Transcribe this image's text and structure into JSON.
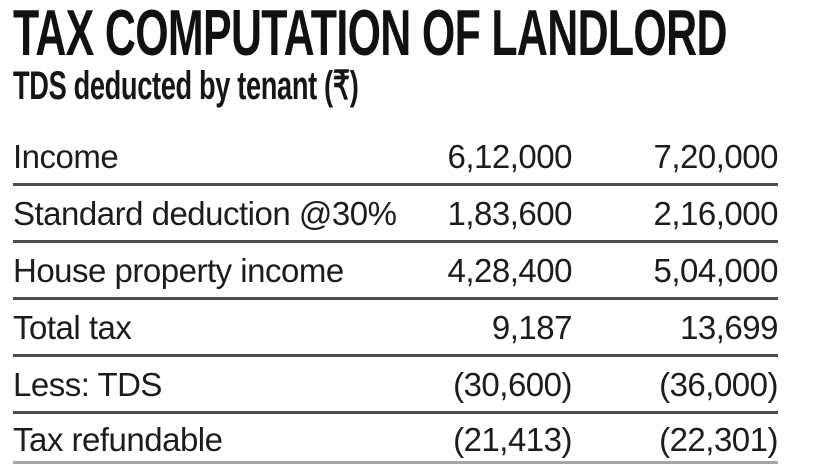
{
  "chart_data": {
    "type": "table",
    "title": "TAX COMPUTATION OF LANDLORD",
    "subtitle": "TDS deducted by tenant (₹)",
    "currency": "₹",
    "rows": [
      {
        "label": "Income",
        "values": [
          "6,12,000",
          "7,20,000"
        ]
      },
      {
        "label": "Standard deduction @30%",
        "values": [
          "1,83,600",
          "2,16,000"
        ]
      },
      {
        "label": "House property income",
        "values": [
          "4,28,400",
          "5,04,000"
        ]
      },
      {
        "label": "Total tax",
        "values": [
          "9,187",
          "13,699"
        ]
      },
      {
        "label": "Less: TDS",
        "values": [
          "(30,600)",
          "(36,000)"
        ]
      },
      {
        "label": "Tax refundable",
        "values": [
          "(21,413)",
          "(22,301)"
        ]
      }
    ],
    "layout": {
      "value_columns": 2,
      "value_alignment": "right",
      "rules_between_rows": true,
      "grid": "horizontal-rules-only"
    }
  },
  "colors": {
    "background": "#ffffff",
    "text": "#1a1a1a",
    "rule": "#4d4d4d"
  }
}
